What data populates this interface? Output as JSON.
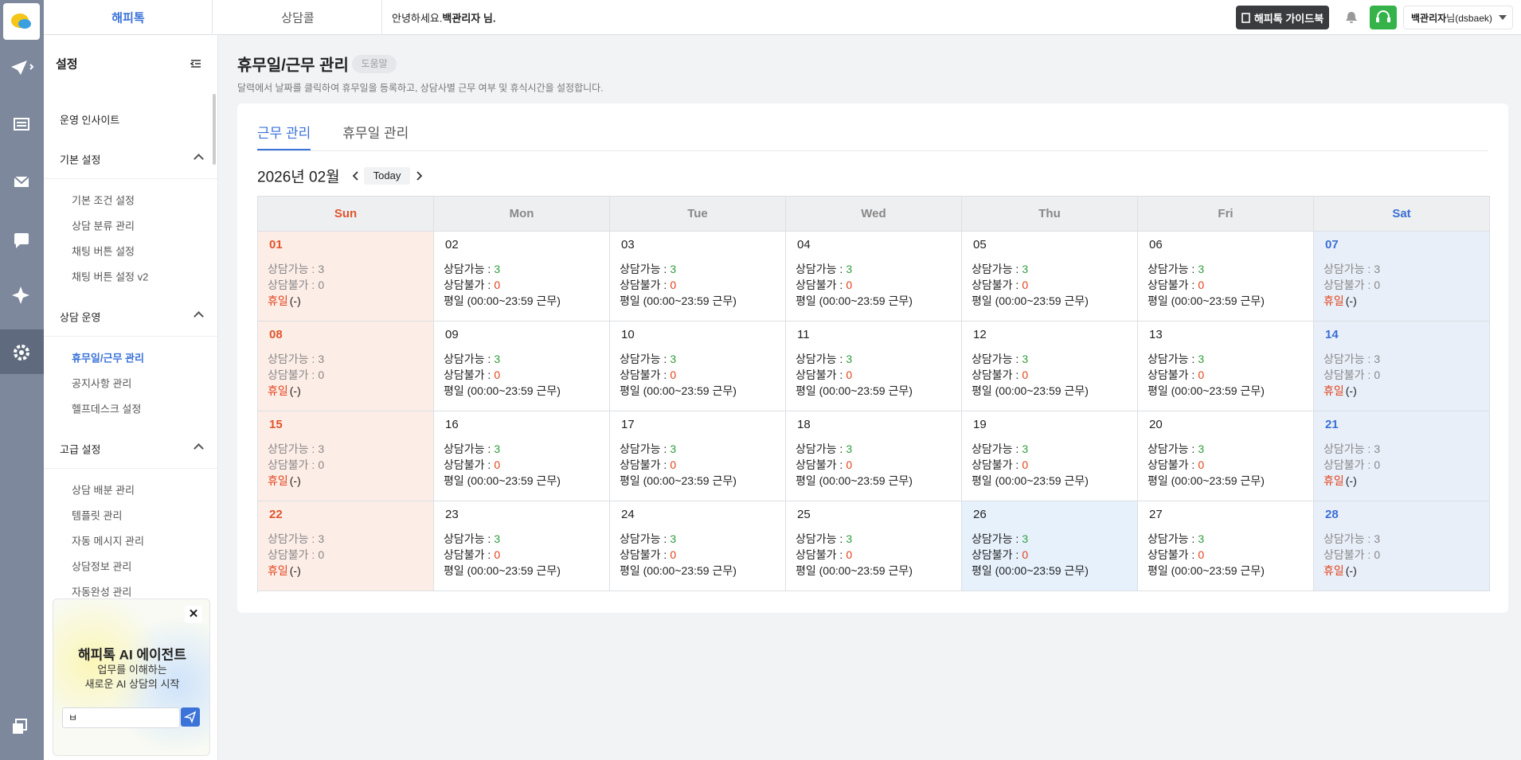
{
  "nav": {
    "tabs": [
      "해피톡",
      "상담콜"
    ],
    "greeting_prefix": "안녕하세요.",
    "greeting_name": "백관리자 님.",
    "guide_button": "해피톡 가이드북",
    "user_name": "백관리자",
    "user_suffix": "님(dsbaek)"
  },
  "sidebar": {
    "title": "설정",
    "menu": [
      {
        "title": "운영 인사이트"
      },
      {
        "title": "기본 설정",
        "items": [
          "기본 조건 설정",
          "상담 분류 관리",
          "채팅 버튼 설정",
          "채팅 버튼 설정 v2"
        ]
      },
      {
        "title": "상담 운영",
        "items": [
          "휴무일/근무 관리",
          "공지사항 관리",
          "헬프데스크 설정"
        ],
        "active": 0
      },
      {
        "title": "고급 설정",
        "items": [
          "상담 배분 관리",
          "템플릿 관리",
          "자동 메시지 관리",
          "상담정보 관리",
          "자동완성 관리"
        ]
      }
    ]
  },
  "promo": {
    "title": "해피톡 AI 에이전트",
    "lines": [
      "업무를 이해하는",
      "새로운 AI 상담의 시작"
    ],
    "input": "ㅂ"
  },
  "page": {
    "title": "휴무일/근무 관리",
    "help": "도움말",
    "description": "달력에서 날짜를 클릭하여 휴무일을 등록하고, 상담사별 근무 여부 및 휴식시간을 설정합니다.",
    "tabs": [
      "근무 관리",
      "휴무일 관리"
    ],
    "active_tab": 0,
    "month": "2026년 02월",
    "today": "Today"
  },
  "calendar": {
    "weekdays": [
      "Sun",
      "Mon",
      "Tue",
      "Wed",
      "Thu",
      "Fri",
      "Sat"
    ],
    "labels": {
      "available": "상담가능 :",
      "unavailable": "상담불가 :"
    },
    "weeks": [
      [
        {
          "day": "01",
          "available": 3,
          "unavailable": 0,
          "status": "휴일",
          "note": "(-)"
        },
        {
          "day": "02",
          "available": 3,
          "unavailable": 0,
          "status": "평일 (00:00~23:59 근무)"
        },
        {
          "day": "03",
          "available": 3,
          "unavailable": 0,
          "status": "평일 (00:00~23:59 근무)"
        },
        {
          "day": "04",
          "available": 3,
          "unavailable": 0,
          "status": "평일 (00:00~23:59 근무)"
        },
        {
          "day": "05",
          "available": 3,
          "unavailable": 0,
          "status": "평일 (00:00~23:59 근무)"
        },
        {
          "day": "06",
          "available": 3,
          "unavailable": 0,
          "status": "평일 (00:00~23:59 근무)"
        },
        {
          "day": "07",
          "available": 3,
          "unavailable": 0,
          "status": "휴일",
          "note": "(-)"
        }
      ],
      [
        {
          "day": "08",
          "available": 3,
          "unavailable": 0,
          "status": "휴일",
          "note": "(-)"
        },
        {
          "day": "09",
          "available": 3,
          "unavailable": 0,
          "status": "평일 (00:00~23:59 근무)"
        },
        {
          "day": "10",
          "available": 3,
          "unavailable": 0,
          "status": "평일 (00:00~23:59 근무)"
        },
        {
          "day": "11",
          "available": 3,
          "unavailable": 0,
          "status": "평일 (00:00~23:59 근무)"
        },
        {
          "day": "12",
          "available": 3,
          "unavailable": 0,
          "status": "평일 (00:00~23:59 근무)"
        },
        {
          "day": "13",
          "available": 3,
          "unavailable": 0,
          "status": "평일 (00:00~23:59 근무)"
        },
        {
          "day": "14",
          "available": 3,
          "unavailable": 0,
          "status": "휴일",
          "note": "(-)"
        }
      ],
      [
        {
          "day": "15",
          "available": 3,
          "unavailable": 0,
          "status": "휴일",
          "note": "(-)"
        },
        {
          "day": "16",
          "available": 3,
          "unavailable": 0,
          "status": "평일 (00:00~23:59 근무)"
        },
        {
          "day": "17",
          "available": 3,
          "unavailable": 0,
          "status": "평일 (00:00~23:59 근무)"
        },
        {
          "day": "18",
          "available": 3,
          "unavailable": 0,
          "status": "평일 (00:00~23:59 근무)"
        },
        {
          "day": "19",
          "available": 3,
          "unavailable": 0,
          "status": "평일 (00:00~23:59 근무)"
        },
        {
          "day": "20",
          "available": 3,
          "unavailable": 0,
          "status": "평일 (00:00~23:59 근무)"
        },
        {
          "day": "21",
          "available": 3,
          "unavailable": 0,
          "status": "휴일",
          "note": "(-)"
        }
      ],
      [
        {
          "day": "22",
          "available": 3,
          "unavailable": 0,
          "status": "휴일",
          "note": "(-)"
        },
        {
          "day": "23",
          "available": 3,
          "unavailable": 0,
          "status": "평일 (00:00~23:59 근무)"
        },
        {
          "day": "24",
          "available": 3,
          "unavailable": 0,
          "status": "평일 (00:00~23:59 근무)"
        },
        {
          "day": "25",
          "available": 3,
          "unavailable": 0,
          "status": "평일 (00:00~23:59 근무)"
        },
        {
          "day": "26",
          "available": 3,
          "unavailable": 0,
          "status": "평일 (00:00~23:59 근무)",
          "today": true
        },
        {
          "day": "27",
          "available": 3,
          "unavailable": 0,
          "status": "평일 (00:00~23:59 근무)"
        },
        {
          "day": "28",
          "available": 3,
          "unavailable": 0,
          "status": "휴일",
          "note": "(-)"
        }
      ]
    ]
  }
}
